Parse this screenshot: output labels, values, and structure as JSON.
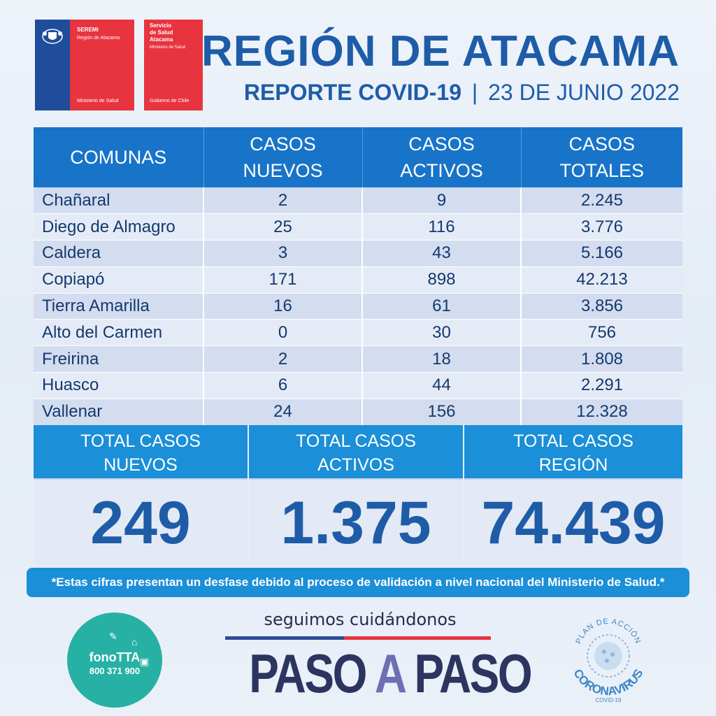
{
  "logos": {
    "seremi": {
      "line1": "SEREMI",
      "line2": "Región de Atacama",
      "footer": "Ministerio de Salud"
    },
    "servicio": {
      "line1": "Servicio",
      "line2": "de Salud",
      "line3": "Atacama",
      "line4": "Ministerio de Salud",
      "footer": "Gobierno de Chile"
    }
  },
  "header": {
    "title": "REGIÓN DE ATACAMA",
    "subtitle_bold": "REPORTE COVID-19",
    "separator": "|",
    "date": "23 DE JUNIO 2022"
  },
  "table": {
    "headers": [
      "COMUNAS",
      "CASOS NUEVOS",
      "CASOS ACTIVOS",
      "CASOS TOTALES"
    ],
    "rows": [
      [
        "Chañaral",
        "2",
        "9",
        "2.245"
      ],
      [
        "Diego de Almagro",
        "25",
        "116",
        "3.776"
      ],
      [
        "Caldera",
        "3",
        "43",
        "5.166"
      ],
      [
        "Copiapó",
        "171",
        "898",
        "42.213"
      ],
      [
        "Tierra Amarilla",
        "16",
        "61",
        "3.856"
      ],
      [
        "Alto del Carmen",
        "0",
        "30",
        "756"
      ],
      [
        "Freirina",
        "2",
        "18",
        "1.808"
      ],
      [
        "Huasco",
        "6",
        "44",
        "2.291"
      ],
      [
        "Vallenar",
        "24",
        "156",
        "12.328"
      ]
    ]
  },
  "totals": [
    {
      "label_l1": "TOTAL CASOS",
      "label_l2": "NUEVOS",
      "value": "249"
    },
    {
      "label_l1": "TOTAL CASOS",
      "label_l2": "ACTIVOS",
      "value": "1.375"
    },
    {
      "label_l1": "TOTAL CASOS",
      "label_l2": "REGIÓN",
      "value": "74.439"
    }
  ],
  "note": "*Estas cifras presentan un desfase debido al proceso de validación a nivel nacional del Ministerio de Salud.*",
  "footer": {
    "fono_name": "fonoTTA",
    "fono_number": "800 371 900",
    "slogan": "seguimos cuidándonos",
    "paso_1": "PASO ",
    "paso_a": "A",
    "paso_2": " PASO",
    "plan_top": "PLAN DE ACCIÓN",
    "plan_main": "CORONAVIRUS",
    "plan_sub": "COVID-19"
  },
  "colors": {
    "brand_blue": "#1e5ca8",
    "header_blue": "#1874c8",
    "accent_cyan": "#1b8fd8",
    "gov_red": "#e8343f",
    "fono_teal": "#27b1a4"
  }
}
